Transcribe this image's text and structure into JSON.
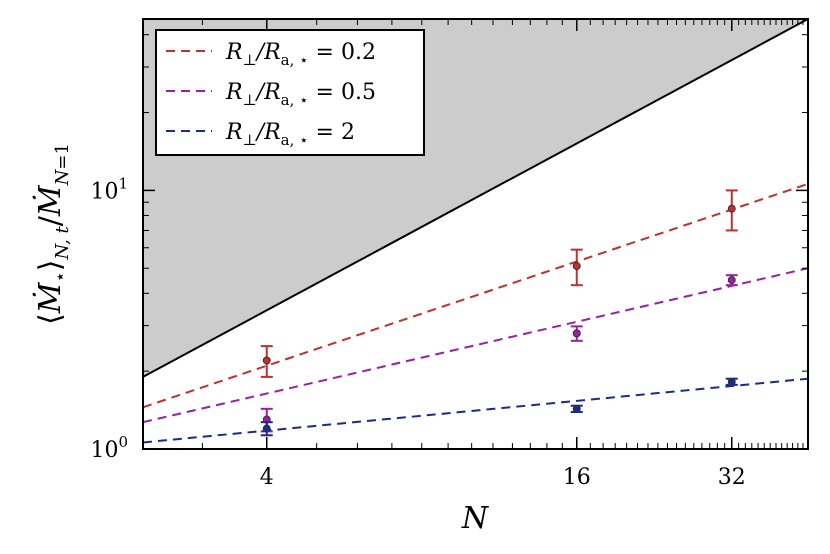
{
  "chart_data": {
    "type": "scatter",
    "xscale": "log2",
    "yscale": "log10",
    "xlim": [
      2.3,
      45
    ],
    "ylim": [
      1,
      46
    ],
    "xlabel": "N",
    "ylabel": "⟨Ṁ⋆⟩N,t/ṀN=1",
    "xticks": [
      {
        "value": 4,
        "label": "4"
      },
      {
        "value": 16,
        "label": "16"
      },
      {
        "value": 32,
        "label": "32"
      }
    ],
    "yticks": [
      {
        "value": 1,
        "base": "10",
        "exp": "0"
      },
      {
        "value": 10,
        "base": "10",
        "exp": "1"
      }
    ],
    "upper_bound": {
      "description": "linear limit, shaded region above",
      "x": [
        2.3,
        45
      ],
      "y": [
        1.9,
        46
      ],
      "fill_color": "#cccccc",
      "line_color": "#000000"
    },
    "series": [
      {
        "name": "R⊥/Ra,⋆ = 0.2",
        "legend_lhs": "R",
        "legend_sub1": "⊥",
        "legend_mid": "/R",
        "legend_sub2": "a, ⋆",
        "legend_rhs": "= 0.2",
        "color": "#c0302e",
        "fit_x": [
          2.3,
          45
        ],
        "fit_y": [
          1.45,
          10.6
        ],
        "points": [
          {
            "x": 4,
            "y": 2.2,
            "err_lo": 0.3,
            "err_hi": 0.3
          },
          {
            "x": 16,
            "y": 5.1,
            "err_lo": 0.8,
            "err_hi": 0.8
          },
          {
            "x": 32,
            "y": 8.5,
            "err_lo": 1.5,
            "err_hi": 1.5
          }
        ]
      },
      {
        "name": "R⊥/Ra,⋆ = 0.5",
        "legend_lhs": "R",
        "legend_sub1": "⊥",
        "legend_mid": "/R",
        "legend_sub2": "a, ⋆",
        "legend_rhs": "= 0.5",
        "color": "#9b1fa6",
        "fit_x": [
          2.3,
          45
        ],
        "fit_y": [
          1.27,
          5.0
        ],
        "points": [
          {
            "x": 4,
            "y": 1.3,
            "err_lo": 0.13,
            "err_hi": 0.13
          },
          {
            "x": 16,
            "y": 2.8,
            "err_lo": 0.18,
            "err_hi": 0.18
          },
          {
            "x": 32,
            "y": 4.5,
            "err_lo": 0.2,
            "err_hi": 0.2
          }
        ]
      },
      {
        "name": "R⊥/Ra,⋆ = 2",
        "legend_lhs": "R",
        "legend_sub1": "⊥",
        "legend_mid": "/R",
        "legend_sub2": "a, ⋆",
        "legend_rhs": "= 2",
        "color": "#1b2a8f",
        "fit_x": [
          2.3,
          45
        ],
        "fit_y": [
          1.06,
          1.87
        ],
        "points": [
          {
            "x": 4,
            "y": 1.2,
            "err_lo": 0.07,
            "err_hi": 0.07
          },
          {
            "x": 16,
            "y": 1.43,
            "err_lo": 0.04,
            "err_hi": 0.04
          },
          {
            "x": 32,
            "y": 1.82,
            "err_lo": 0.05,
            "err_hi": 0.05
          }
        ]
      }
    ],
    "legend_position": "top-left"
  }
}
